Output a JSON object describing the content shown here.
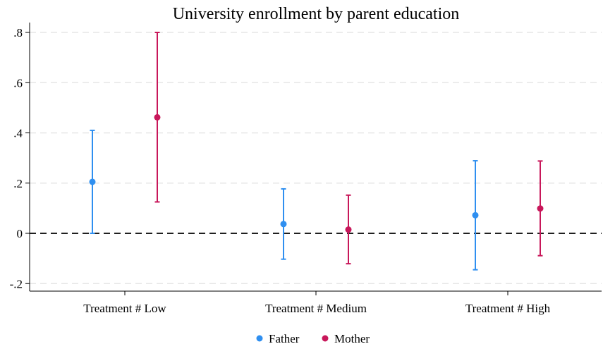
{
  "chart_data": {
    "type": "scatter",
    "subtype": "coefficient-plot-with-confidence-intervals",
    "title": "University enrollment by parent education",
    "xlabel": "",
    "ylabel": "",
    "categories": [
      "Treatment # Low",
      "Treatment # Medium",
      "Treatment # High"
    ],
    "ylim": [
      -0.23,
      0.83
    ],
    "yticks": [
      -0.2,
      0,
      0.2,
      0.4,
      0.6,
      0.8
    ],
    "ytick_labels": [
      "-.2",
      "0",
      ".2",
      ".4",
      ".6",
      ".8"
    ],
    "reference_line": {
      "y": 0,
      "style": "dashed",
      "color": "#000000"
    },
    "grid": "horizontal dashed",
    "legend": {
      "placement": "bottom-center"
    },
    "series": [
      {
        "name": "Father",
        "color": "#2f8ff0",
        "estimates": [
          0.205,
          0.037,
          0.072
        ],
        "ci_low": [
          0.0,
          -0.103,
          -0.145
        ],
        "ci_high": [
          0.41,
          0.177,
          0.289
        ]
      },
      {
        "name": "Mother",
        "color": "#c8175a",
        "estimates": [
          0.462,
          0.015,
          0.099
        ],
        "ci_low": [
          0.125,
          -0.121,
          -0.089
        ],
        "ci_high": [
          0.8,
          0.152,
          0.288
        ]
      }
    ]
  }
}
